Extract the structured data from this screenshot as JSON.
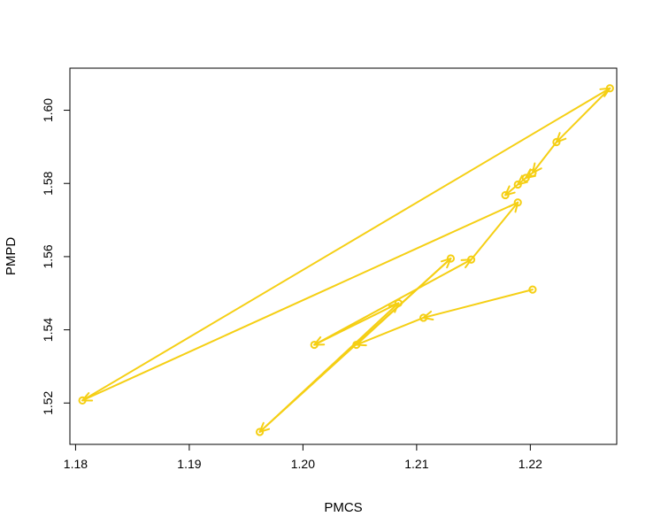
{
  "chart_data": {
    "type": "line",
    "title": "",
    "xlabel": "PMCS",
    "ylabel": "PMPD",
    "xlim": [
      1.1795,
      1.2276
    ],
    "ylim": [
      1.5087,
      1.6115
    ],
    "x_ticks": [
      1.18,
      1.19,
      1.2,
      1.21,
      1.22
    ],
    "x_tick_labels": [
      "1.18",
      "1.19",
      "1.20",
      "1.21",
      "1.22"
    ],
    "y_ticks": [
      1.52,
      1.54,
      1.56,
      1.58,
      1.6
    ],
    "y_tick_labels": [
      "1.52",
      "1.54",
      "1.56",
      "1.58",
      "1.60"
    ],
    "grid": false,
    "legend": "none",
    "color": "#f5cf14",
    "marker": "open-circle",
    "connector": "arrow",
    "series": [
      {
        "points": [
          {
            "x": 1.2202,
            "y": 1.551
          },
          {
            "x": 1.2106,
            "y": 1.5433
          },
          {
            "x": 1.2047,
            "y": 1.5359
          },
          {
            "x": 1.213,
            "y": 1.5595
          },
          {
            "x": 1.1962,
            "y": 1.5121
          },
          {
            "x": 1.2084,
            "y": 1.5473
          },
          {
            "x": 1.201,
            "y": 1.5359
          },
          {
            "x": 1.2148,
            "y": 1.5592
          },
          {
            "x": 1.2189,
            "y": 1.5748
          },
          {
            "x": 1.1806,
            "y": 1.5207
          },
          {
            "x": 1.227,
            "y": 1.606
          },
          {
            "x": 1.2223,
            "y": 1.5913
          },
          {
            "x": 1.2202,
            "y": 1.5829
          },
          {
            "x": 1.2196,
            "y": 1.5815
          },
          {
            "x": 1.2189,
            "y": 1.5797
          },
          {
            "x": 1.2178,
            "y": 1.5768
          }
        ]
      }
    ]
  }
}
